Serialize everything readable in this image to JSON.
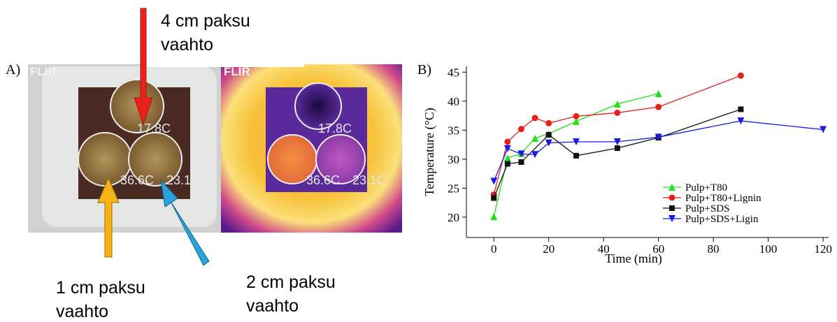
{
  "panel_a": {
    "label": "A)",
    "logo": "FLIR",
    "readings": [
      "17.8C",
      "36.6C",
      "23.1C"
    ],
    "annotations": [
      {
        "lines": [
          "4 cm paksu",
          "vaahto"
        ],
        "color": "#e8221c"
      },
      {
        "lines": [
          "1 cm paksu",
          "vaahto"
        ],
        "color": "#f5b315"
      },
      {
        "lines": [
          "2 cm paksu",
          "vaahto"
        ],
        "color": "#29a3dc"
      }
    ]
  },
  "chart_data": {
    "type": "line",
    "title": "B)",
    "x_label": "Time (min)",
    "y_label": "Temperature (°C)",
    "xlim": [
      -10,
      122
    ],
    "ylim": [
      16.5,
      46
    ],
    "xticks": [
      0,
      20,
      40,
      60,
      80,
      100,
      120
    ],
    "yticks": [
      20,
      25,
      30,
      35,
      40,
      45
    ],
    "legend": "lower right",
    "series": [
      {
        "name": "Pulp+T80",
        "color": "#22e01a",
        "marker": "triangle-up",
        "x": [
          0,
          5,
          10,
          15,
          20,
          30,
          45,
          60
        ],
        "values": [
          20.1,
          30.2,
          31,
          33.6,
          34.4,
          36.5,
          39.5,
          41.3
        ]
      },
      {
        "name": "Pulp+T80+Lignin",
        "color": "#e8201c",
        "marker": "circle",
        "x": [
          0,
          5,
          10,
          15,
          20,
          30,
          45,
          60,
          90
        ],
        "values": [
          23.9,
          33.0,
          35.2,
          37.1,
          36.2,
          37.4,
          38.0,
          39.0,
          44.4
        ]
      },
      {
        "name": "Pulp+SDS",
        "color": "#111111",
        "marker": "square",
        "x": [
          0,
          5,
          10,
          20,
          30,
          45,
          60,
          90
        ],
        "values": [
          23.3,
          29.2,
          29.5,
          34.2,
          30.6,
          31.9,
          33.7,
          38.6
        ]
      },
      {
        "name": "Pulp+SDS+Ligin",
        "color": "#1a1ae0",
        "marker": "triangle-down",
        "x": [
          0,
          5,
          10,
          15,
          20,
          30,
          45,
          60,
          90,
          120
        ],
        "values": [
          26.2,
          31.8,
          30.9,
          30.8,
          32.8,
          33.0,
          33.0,
          33.8,
          36.6,
          35.1
        ]
      }
    ]
  }
}
